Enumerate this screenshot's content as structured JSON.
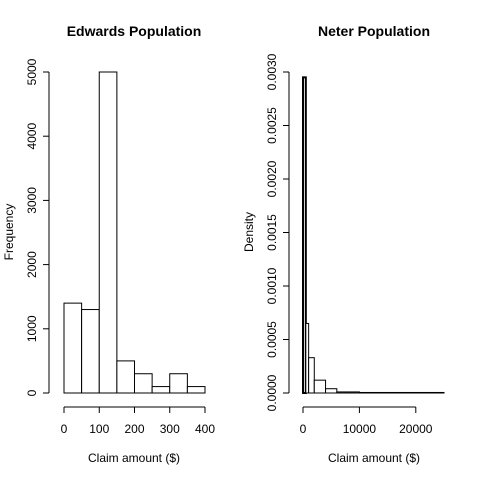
{
  "chart_data": [
    {
      "type": "bar",
      "title": "Edwards Population",
      "xlabel": "Claim amount ($)",
      "ylabel": "Frequency",
      "bins": [
        [
          0,
          50
        ],
        [
          50,
          100
        ],
        [
          100,
          150
        ],
        [
          150,
          200
        ],
        [
          200,
          250
        ],
        [
          250,
          300
        ],
        [
          300,
          350
        ],
        [
          350,
          400
        ]
      ],
      "values": [
        1400,
        1300,
        5000,
        500,
        300,
        100,
        300,
        100
      ],
      "xlim": [
        0,
        400
      ],
      "ylim": [
        0,
        5000
      ],
      "xticks": [
        0,
        100,
        200,
        300,
        400
      ],
      "yticks": [
        0,
        1000,
        2000,
        3000,
        4000,
        5000
      ],
      "grid": false
    },
    {
      "type": "bar",
      "title": "Neter Population",
      "xlabel": "Claim amount ($)",
      "ylabel": "Density",
      "bins": [
        [
          0,
          500
        ],
        [
          500,
          1000
        ],
        [
          1000,
          2000
        ],
        [
          2000,
          4000
        ],
        [
          4000,
          6000
        ],
        [
          6000,
          10000
        ],
        [
          10000,
          25000
        ]
      ],
      "values": [
        0.00295,
        0.00065,
        0.00033,
        0.00012,
        4e-05,
        1e-05,
        5e-06
      ],
      "xlim": [
        0,
        25000
      ],
      "ylim": [
        0,
        0.003
      ],
      "xticks": [
        0,
        10000,
        20000
      ],
      "xtick_labels": [
        "0",
        "10000",
        "20000"
      ],
      "yticks": [
        0,
        0.0005,
        0.001,
        0.0015,
        0.002,
        0.0025,
        0.003
      ],
      "ytick_labels": [
        "0.0000",
        "0.0005",
        "0.0010",
        "0.0015",
        "0.0020",
        "0.0025",
        "0.0030"
      ],
      "grid": false
    }
  ]
}
